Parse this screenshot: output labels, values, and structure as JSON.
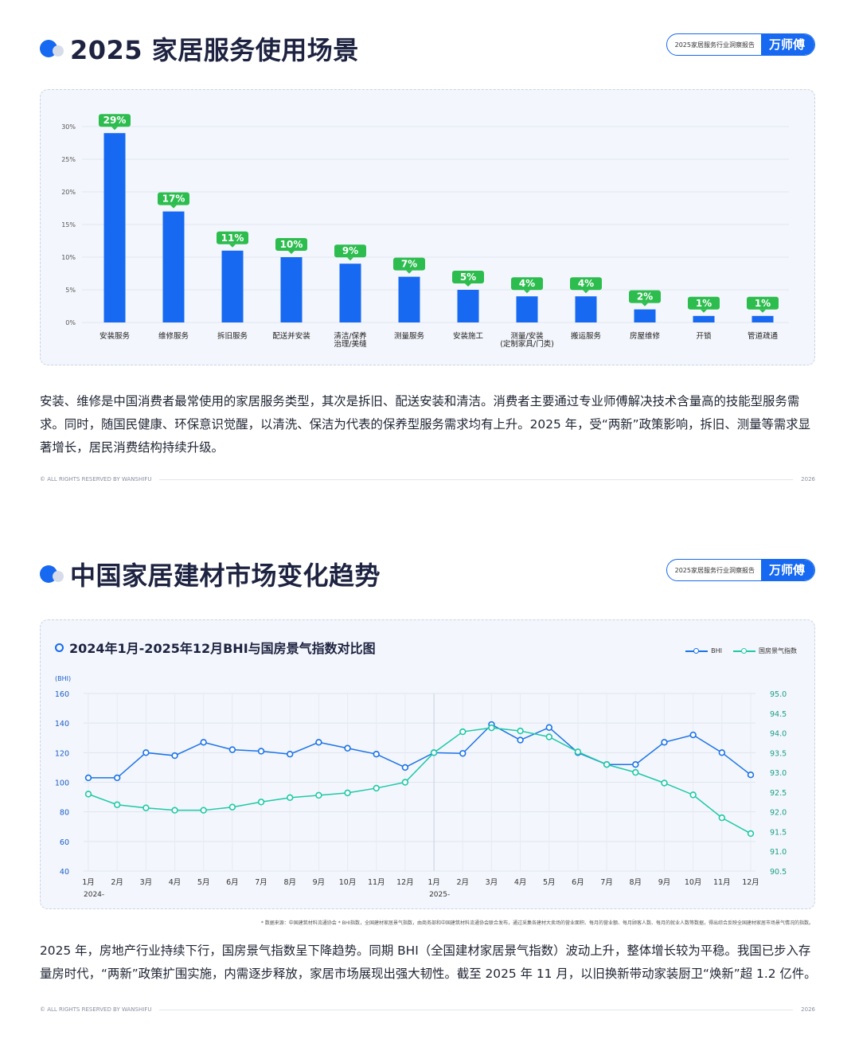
{
  "section1": {
    "title": "2025 家居服务使用场景",
    "badge_text": "2025家居服务行业洞察报告",
    "badge_brand": "万师傅",
    "paragraph": "安装、维修是中国消费者最常使用的家居服务类型，其次是拆旧、配送安装和清洁。消费者主要通过专业师傅解决技术含量高的技能型服务需求。同时，随国民健康、环保意识觉醒，以清洗、保洁为代表的保养型服务需求均有上升。2025 年，受“两新”政策影响，拆旧、测量等需求显著增长，居民消费结构持续升级。",
    "footer_left": "© ALL RIGHTS RESERVED BY WANSHIFU",
    "footer_right": "2026"
  },
  "section2": {
    "title": "中国家居建材市场变化趋势",
    "badge_text": "2025家居服务行业洞察报告",
    "badge_brand": "万师傅",
    "chart_title": "2024年1月-2025年12月BHI与国房景气指数对比图",
    "source": "* 数据来源：中国建筑材料流通协会 * BHI指数，全国建材家居景气指数，由商务部和中国建筑材料流通协会联合发布，通过采集各建材大卖场的营业面积、每月的营业额、每月顾客人数、每月的就业人数等数据，得出综合反映全国建材家居市场景气情况的指数。",
    "paragraph": "2025 年，房地产行业持续下行，国房景气指数呈下降趋势。同期 BHI（全国建材家居景气指数）波动上升，整体增长较为平稳。我国已步入存量房时代，“两新”政策扩围实施，内需逐步释放，家居市场展现出强大韧性。截至 2025 年 11 月，以旧换新带动家装厨卫“焕新”超 1.2 亿件。",
    "footer_left": "© ALL RIGHTS RESERVED BY WANSHIFU",
    "footer_right": "2026"
  },
  "colors": {
    "primary": "#1669f0",
    "green_label": "#2dbd4e",
    "teal": "#1ec9a6",
    "bhi_line": "#1b73e8"
  },
  "chart_data": [
    {
      "type": "bar",
      "categories": [
        "安装服务",
        "维修服务",
        "拆旧服务",
        "配送并安装",
        "清洁/保养\n治理/美缝",
        "测量服务",
        "安装施工",
        "测量/安装\n(定制家具/门类)",
        "搬运服务",
        "房屋维修",
        "开锁",
        "管道疏通"
      ],
      "values": [
        29,
        17,
        11,
        10,
        9,
        7,
        5,
        4,
        4,
        2,
        1,
        1
      ],
      "labels": [
        "29%",
        "17%",
        "11%",
        "10%",
        "9%",
        "7%",
        "5%",
        "4%",
        "4%",
        "2%",
        "1%",
        "1%"
      ],
      "yticks": [
        "0%",
        "5%",
        "10%",
        "15%",
        "20%",
        "25%",
        "30%"
      ],
      "ylim": [
        0,
        30
      ]
    },
    {
      "type": "line",
      "title": "2024年1月-2025年12月BHI与国房景气指数对比图",
      "x": [
        "1月",
        "2月",
        "3月",
        "4月",
        "5月",
        "6月",
        "7月",
        "8月",
        "9月",
        "10月",
        "11月",
        "12月",
        "1月",
        "2月",
        "3月",
        "4月",
        "5月",
        "6月",
        "7月",
        "8月",
        "9月",
        "10月",
        "11月",
        "12月"
      ],
      "year_labels": [
        "2024-",
        "2025-"
      ],
      "left_axis_label": "(BHI)",
      "left_ticks": [
        "40",
        "60",
        "80",
        "100",
        "120",
        "140",
        "160"
      ],
      "left_lim": [
        40,
        160
      ],
      "right_ticks": [
        "90.5",
        "91.0",
        "91.5",
        "92.0",
        "92.5",
        "93.0",
        "93.5",
        "94.0",
        "94.5",
        "95.0"
      ],
      "right_lim": [
        90.5,
        95.0
      ],
      "series": [
        {
          "name": "BHI",
          "axis": "left",
          "values": [
            103,
            103,
            120,
            118,
            127,
            122,
            121,
            119,
            127,
            123,
            119,
            110,
            120,
            119.5,
            139,
            128.5,
            137,
            120,
            112,
            112,
            127,
            132,
            120,
            105
          ]
        },
        {
          "name": "国房景气指数",
          "axis": "right",
          "values": [
            92.45,
            92.18,
            92.1,
            92.04,
            92.04,
            92.12,
            92.25,
            92.36,
            92.42,
            92.48,
            92.6,
            92.75,
            93.5,
            94.03,
            94.13,
            94.05,
            93.9,
            93.52,
            93.2,
            93.0,
            92.73,
            92.43,
            91.85,
            91.45
          ]
        }
      ]
    }
  ]
}
